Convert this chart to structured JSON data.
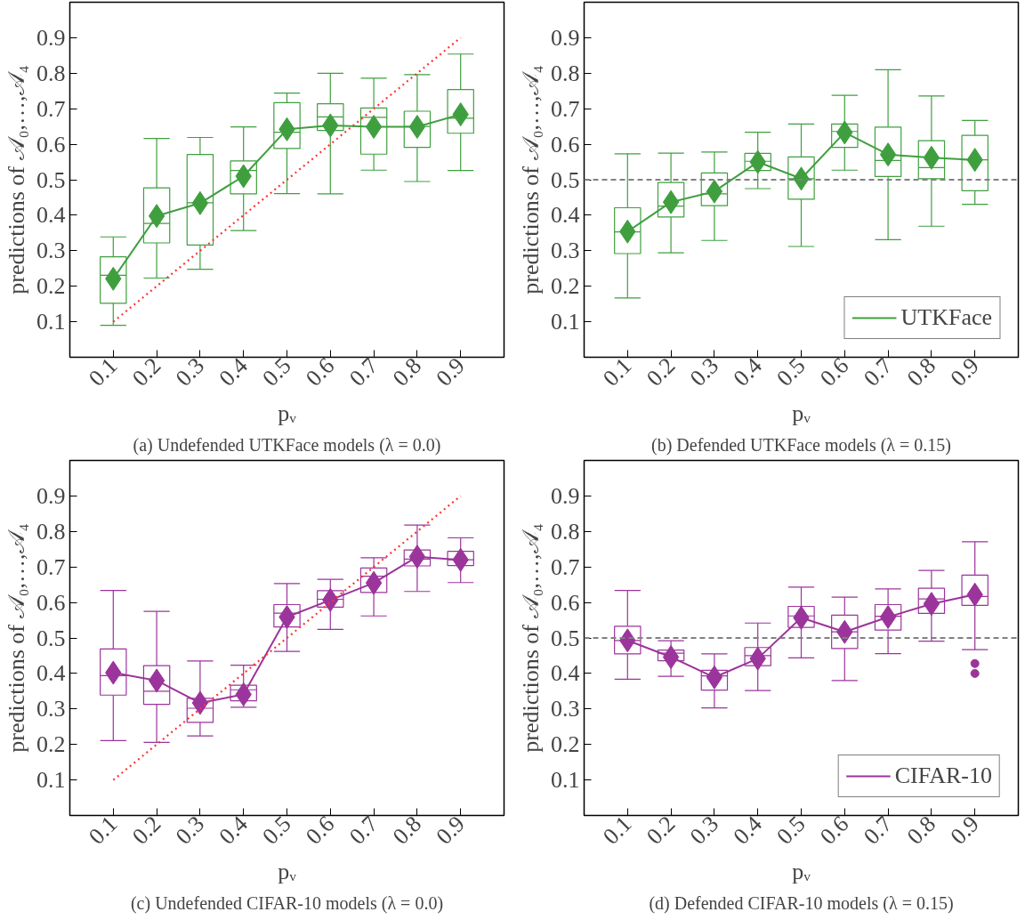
{
  "chart_data": [
    {
      "type": "box",
      "title": "(a) Undefended UTKFace models (λ = 0.0)",
      "xlabel": "pᵥ",
      "ylabel": "predictions of 𝒜₀,…,𝒜₄",
      "x": [
        0.1,
        0.2,
        0.3,
        0.4,
        0.5,
        0.6,
        0.7,
        0.8,
        0.9
      ],
      "xlim": [
        0,
        1
      ],
      "xticks": [
        0.1,
        0.2,
        0.3,
        0.4,
        0.5,
        0.6,
        0.7,
        0.8,
        0.9
      ],
      "ylim": [
        0,
        1
      ],
      "yticks": [
        0.1,
        0.2,
        0.3,
        0.4,
        0.5,
        0.6,
        0.7,
        0.8,
        0.9
      ],
      "grid": false,
      "legend": false,
      "series": [
        {
          "color": "#3f9f3f",
          "boxes": [
            {
              "low": 0.09,
              "q1": 0.152,
              "median": 0.231,
              "q3": 0.283,
              "high": 0.339
            },
            {
              "low": 0.223,
              "q1": 0.322,
              "median": 0.377,
              "q3": 0.477,
              "high": 0.616
            },
            {
              "low": 0.248,
              "q1": 0.316,
              "median": 0.435,
              "q3": 0.571,
              "high": 0.619
            },
            {
              "low": 0.357,
              "q1": 0.46,
              "median": 0.526,
              "q3": 0.553,
              "high": 0.649
            },
            {
              "low": 0.461,
              "q1": 0.588,
              "median": 0.634,
              "q3": 0.717,
              "high": 0.744
            },
            {
              "low": 0.46,
              "q1": 0.639,
              "median": 0.677,
              "q3": 0.714,
              "high": 0.8
            },
            {
              "low": 0.527,
              "q1": 0.572,
              "median": 0.676,
              "q3": 0.702,
              "high": 0.786
            },
            {
              "low": 0.495,
              "q1": 0.591,
              "median": 0.65,
              "q3": 0.693,
              "high": 0.796
            },
            {
              "low": 0.526,
              "q1": 0.631,
              "median": 0.673,
              "q3": 0.754,
              "high": 0.854
            }
          ]
        },
        {
          "type": "line",
          "color": "#3f9f3f",
          "marker": "diamond",
          "values": [
            0.221,
            0.398,
            0.434,
            0.51,
            0.642,
            0.653,
            0.649,
            0.649,
            0.684
          ]
        },
        {
          "type": "line",
          "color": "#ff3333",
          "line_style": "dotted",
          "marker": "none",
          "values": [
            0.1,
            0.2,
            0.3,
            0.4,
            0.5,
            0.6,
            0.7,
            0.8,
            0.9
          ]
        }
      ]
    },
    {
      "type": "box",
      "title": "(b) Defended UTKFace models (λ = 0.15)",
      "xlabel": "pᵥ",
      "ylabel": "predictions of 𝒜₀,…,𝒜₄",
      "x": [
        0.1,
        0.2,
        0.3,
        0.4,
        0.5,
        0.6,
        0.7,
        0.8,
        0.9
      ],
      "xlim": [
        0,
        1
      ],
      "xticks": [
        0.1,
        0.2,
        0.3,
        0.4,
        0.5,
        0.6,
        0.7,
        0.8,
        0.9
      ],
      "ylim": [
        0,
        1
      ],
      "yticks": [
        0.1,
        0.2,
        0.3,
        0.4,
        0.5,
        0.6,
        0.7,
        0.8,
        0.9
      ],
      "grid": false,
      "legend": "bottom right",
      "series": [
        {
          "color": "#3f9f3f",
          "boxes": [
            {
              "low": 0.167,
              "q1": 0.292,
              "median": 0.353,
              "q3": 0.421,
              "high": 0.573
            },
            {
              "low": 0.294,
              "q1": 0.395,
              "median": 0.426,
              "q3": 0.492,
              "high": 0.575
            },
            {
              "low": 0.329,
              "q1": 0.427,
              "median": 0.46,
              "q3": 0.519,
              "high": 0.578
            },
            {
              "low": 0.475,
              "q1": 0.526,
              "median": 0.552,
              "q3": 0.574,
              "high": 0.634
            },
            {
              "low": 0.312,
              "q1": 0.445,
              "median": 0.503,
              "q3": 0.564,
              "high": 0.657
            },
            {
              "low": 0.527,
              "q1": 0.591,
              "median": 0.636,
              "q3": 0.657,
              "high": 0.738
            },
            {
              "low": 0.331,
              "q1": 0.509,
              "median": 0.554,
              "q3": 0.648,
              "high": 0.81
            },
            {
              "low": 0.369,
              "q1": 0.503,
              "median": 0.534,
              "q3": 0.61,
              "high": 0.736
            },
            {
              "low": 0.431,
              "q1": 0.469,
              "median": 0.556,
              "q3": 0.625,
              "high": 0.667
            }
          ]
        },
        {
          "type": "line",
          "name": "UTKFace",
          "color": "#3f9f3f",
          "marker": "diamond",
          "values": [
            0.354,
            0.437,
            0.467,
            0.55,
            0.503,
            0.633,
            0.571,
            0.562,
            0.556
          ]
        }
      ],
      "ref_lines": [
        {
          "axis": "y",
          "value": 0.5,
          "color": "#808080",
          "line_style": "dashed"
        }
      ]
    },
    {
      "type": "box",
      "title": "(c) Undefended CIFAR-10 models (λ = 0.0)",
      "xlabel": "pᵥ",
      "ylabel": "predictions of 𝒜₀,…,𝒜₄",
      "x": [
        0.1,
        0.2,
        0.3,
        0.4,
        0.5,
        0.6,
        0.7,
        0.8,
        0.9
      ],
      "xlim": [
        0,
        1
      ],
      "xticks": [
        0.1,
        0.2,
        0.3,
        0.4,
        0.5,
        0.6,
        0.7,
        0.8,
        0.9
      ],
      "ylim": [
        0,
        1
      ],
      "yticks": [
        0.1,
        0.2,
        0.3,
        0.4,
        0.5,
        0.6,
        0.7,
        0.8,
        0.9
      ],
      "grid": false,
      "legend": false,
      "series": [
        {
          "color": "#9b349b",
          "boxes": [
            {
              "low": 0.211,
              "q1": 0.339,
              "median": 0.394,
              "q3": 0.469,
              "high": 0.634
            },
            {
              "low": 0.206,
              "q1": 0.313,
              "median": 0.35,
              "q3": 0.422,
              "high": 0.575
            },
            {
              "low": 0.224,
              "q1": 0.262,
              "median": 0.302,
              "q3": 0.33,
              "high": 0.435
            },
            {
              "low": 0.305,
              "q1": 0.323,
              "median": 0.354,
              "q3": 0.367,
              "high": 0.423
            },
            {
              "low": 0.462,
              "q1": 0.531,
              "median": 0.57,
              "q3": 0.594,
              "high": 0.653
            },
            {
              "low": 0.524,
              "q1": 0.587,
              "median": 0.609,
              "q3": 0.633,
              "high": 0.665
            },
            {
              "low": 0.562,
              "q1": 0.628,
              "median": 0.674,
              "q3": 0.697,
              "high": 0.726
            },
            {
              "low": 0.631,
              "q1": 0.703,
              "median": 0.722,
              "q3": 0.748,
              "high": 0.818
            },
            {
              "low": 0.656,
              "q1": 0.704,
              "median": 0.72,
              "q3": 0.744,
              "high": 0.782
            }
          ]
        },
        {
          "type": "line",
          "color": "#9b349b",
          "marker": "diamond",
          "values": [
            0.402,
            0.38,
            0.317,
            0.341,
            0.559,
            0.607,
            0.655,
            0.729,
            0.72
          ]
        },
        {
          "type": "line",
          "color": "#ff3333",
          "line_style": "dotted",
          "marker": "none",
          "values": [
            0.1,
            0.2,
            0.3,
            0.4,
            0.5,
            0.6,
            0.7,
            0.8,
            0.9
          ]
        }
      ]
    },
    {
      "type": "box",
      "title": "(d) Defended CIFAR-10 models (λ = 0.15)",
      "xlabel": "pᵥ",
      "ylabel": "predictions of 𝒜₀,…,𝒜₄",
      "x": [
        0.1,
        0.2,
        0.3,
        0.4,
        0.5,
        0.6,
        0.7,
        0.8,
        0.9
      ],
      "xlim": [
        0,
        1
      ],
      "xticks": [
        0.1,
        0.2,
        0.3,
        0.4,
        0.5,
        0.6,
        0.7,
        0.8,
        0.9
      ],
      "ylim": [
        0,
        1
      ],
      "yticks": [
        0.1,
        0.2,
        0.3,
        0.4,
        0.5,
        0.6,
        0.7,
        0.8,
        0.9
      ],
      "grid": false,
      "legend": "bottom right",
      "series": [
        {
          "color": "#9b349b",
          "boxes": [
            {
              "low": 0.384,
              "q1": 0.455,
              "median": 0.493,
              "q3": 0.533,
              "high": 0.634
            },
            {
              "low": 0.392,
              "q1": 0.436,
              "median": 0.457,
              "q3": 0.466,
              "high": 0.492
            },
            {
              "low": 0.303,
              "q1": 0.353,
              "median": 0.393,
              "q3": 0.409,
              "high": 0.455
            },
            {
              "low": 0.352,
              "q1": 0.422,
              "median": 0.45,
              "q3": 0.473,
              "high": 0.542
            },
            {
              "low": 0.444,
              "q1": 0.53,
              "median": 0.562,
              "q3": 0.589,
              "high": 0.643
            },
            {
              "low": 0.38,
              "q1": 0.47,
              "median": 0.517,
              "q3": 0.564,
              "high": 0.615
            },
            {
              "low": 0.456,
              "q1": 0.522,
              "median": 0.561,
              "q3": 0.594,
              "high": 0.638
            },
            {
              "low": 0.491,
              "q1": 0.569,
              "median": 0.61,
              "q3": 0.64,
              "high": 0.69
            },
            {
              "low": 0.467,
              "q1": 0.592,
              "median": 0.617,
              "q3": 0.677,
              "high": 0.771,
              "outliers": [
                0.428,
                0.4
              ]
            }
          ]
        },
        {
          "type": "line",
          "name": "CIFAR-10",
          "color": "#9b349b",
          "marker": "diamond",
          "values": [
            0.493,
            0.446,
            0.389,
            0.442,
            0.557,
            0.517,
            0.559,
            0.596,
            0.622
          ]
        }
      ],
      "ref_lines": [
        {
          "axis": "y",
          "value": 0.5,
          "color": "#808080",
          "line_style": "dashed"
        }
      ]
    }
  ]
}
